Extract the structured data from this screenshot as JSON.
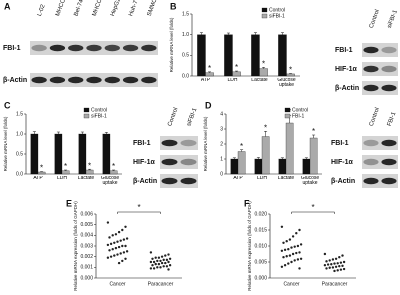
{
  "panel_labels": [
    "A",
    "B",
    "C",
    "D",
    "E",
    "F"
  ],
  "blots": [
    {
      "lanes": [
        "L-02",
        "MHCC97-H",
        "Bel-7402",
        "MHCC97-L",
        "HepG2",
        "Huh-7",
        "SMMC-7721"
      ],
      "rows": [
        "FBI-1",
        "β-Actin"
      ]
    },
    {
      "lanes": [
        "Control",
        "siFBI-1"
      ],
      "rows": [
        "FBI-1",
        "HIF-1α",
        "β-Actin"
      ]
    },
    {
      "lanes": [
        "Control",
        "siFBI-1"
      ],
      "rows": [
        "FBI-1",
        "HIF-1α",
        "β-Actin"
      ]
    },
    {
      "lanes": [
        "Control",
        "FBI-1"
      ],
      "rows": [
        "FBI-1",
        "HIF-1α",
        "β-Actin"
      ]
    }
  ],
  "chart_data": [
    {
      "type": "bar",
      "y_label": "Relative mRNA level (folds)",
      "categories": [
        "ATP",
        "LDH",
        "Lactate",
        "Glucose uptake"
      ],
      "series": [
        {
          "name": "Control",
          "color": "#111111",
          "values": [
            1.0,
            1.0,
            1.0,
            1.0
          ],
          "errors": [
            0.05,
            0.04,
            0.05,
            0.05
          ]
        },
        {
          "name": "siFBI-1",
          "color": "#aaaaaa",
          "values": [
            0.08,
            0.1,
            0.18,
            0.05
          ],
          "errors": [
            0.02,
            0.02,
            0.03,
            0.01
          ]
        }
      ],
      "annotations": [
        "*",
        "*",
        "*",
        "*"
      ],
      "ylim": [
        0,
        1.5
      ],
      "yticks": [
        {
          "value": 0,
          "label": "0.0"
        },
        {
          "value": 0.5,
          "label": "0.5"
        },
        {
          "value": 1,
          "label": "1.0"
        },
        {
          "value": 1.5,
          "label": "1.5"
        }
      ]
    },
    {
      "type": "bar",
      "y_label": "Relative mRNA level (folds)",
      "categories": [
        "ATP",
        "LDH",
        "Lactate",
        "Glucose uptake"
      ],
      "series": [
        {
          "name": "Control",
          "color": "#111111",
          "values": [
            1.0,
            1.0,
            1.0,
            1.0
          ],
          "errors": [
            0.06,
            0.05,
            0.05,
            0.04
          ]
        },
        {
          "name": "siFBI-1",
          "color": "#aaaaaa",
          "values": [
            0.05,
            0.08,
            0.1,
            0.08
          ],
          "errors": [
            0.01,
            0.02,
            0.02,
            0.02
          ]
        }
      ],
      "annotations": [
        "*",
        "*",
        "*",
        "*"
      ],
      "ylim": [
        0,
        1.5
      ],
      "yticks": [
        {
          "value": 0,
          "label": "0.0"
        },
        {
          "value": 0.5,
          "label": "0.5"
        },
        {
          "value": 1,
          "label": "1.0"
        },
        {
          "value": 1.5,
          "label": "1.5"
        }
      ]
    },
    {
      "type": "bar",
      "y_label": "Relative mRNA level (folds)",
      "categories": [
        "ATP",
        "LDH",
        "Lactate",
        "Glucose uptake"
      ],
      "series": [
        {
          "name": "Control",
          "color": "#111111",
          "values": [
            1.0,
            1.0,
            1.0,
            1.0
          ],
          "errors": [
            0.08,
            0.1,
            0.08,
            0.08
          ]
        },
        {
          "name": "FBI-1",
          "color": "#aaaaaa",
          "values": [
            1.5,
            2.5,
            3.4,
            2.4
          ],
          "errors": [
            0.12,
            0.35,
            0.5,
            0.2
          ]
        }
      ],
      "annotations": [
        "*",
        "*",
        "*",
        "*"
      ],
      "ylim": [
        0,
        4
      ],
      "yticks": [
        0,
        1,
        2,
        3,
        4
      ]
    },
    {
      "type": "scatter",
      "y_label": "Relative mRNA expression (folds of GAPDH)",
      "categories": [
        "Cancer",
        "Paracancer"
      ],
      "series": [
        {
          "color": "#222222",
          "values": [
            0.0052,
            0.0048,
            0.0045,
            0.0043,
            0.0041,
            0.004,
            0.0038,
            0.0037,
            0.0036,
            0.0035,
            0.0034,
            0.0033,
            0.0032,
            0.0031,
            0.003,
            0.003,
            0.0029,
            0.0028,
            0.0027,
            0.0026,
            0.0025,
            0.0024,
            0.0023,
            0.0022,
            0.0021,
            0.002,
            0.0019,
            0.0018,
            0.0016,
            0.0014
          ]
        },
        {
          "color": "#222222",
          "values": [
            0.0024,
            0.0022,
            0.0021,
            0.002,
            0.0019,
            0.0019,
            0.0018,
            0.0018,
            0.0017,
            0.0017,
            0.0016,
            0.0016,
            0.0015,
            0.0015,
            0.0015,
            0.0014,
            0.0014,
            0.0013,
            0.0013,
            0.0012,
            0.0012,
            0.0011,
            0.0011,
            0.001,
            0.001,
            0.0009,
            0.0009,
            0.0008
          ]
        }
      ],
      "annotation": "*",
      "ylim": [
        0,
        0.006
      ],
      "yticks": [
        {
          "value": 0,
          "label": "0.000"
        },
        {
          "value": 0.001,
          "label": "0.001"
        },
        {
          "value": 0.002,
          "label": "0.002"
        },
        {
          "value": 0.003,
          "label": "0.003"
        },
        {
          "value": 0.004,
          "label": "0.004"
        },
        {
          "value": 0.005,
          "label": "0.005"
        },
        {
          "value": 0.006,
          "label": "0.006"
        }
      ]
    },
    {
      "type": "scatter",
      "y_label": "Relative mRNA expression (folds of GAPDH)",
      "categories": [
        "Cancer",
        "Paracancer"
      ],
      "series": [
        {
          "color": "#222222",
          "values": [
            0.016,
            0.015,
            0.014,
            0.013,
            0.012,
            0.0115,
            0.011,
            0.0105,
            0.01,
            0.0098,
            0.0095,
            0.009,
            0.0088,
            0.0085,
            0.008,
            0.0078,
            0.0075,
            0.007,
            0.0068,
            0.0065,
            0.006,
            0.0058,
            0.0055,
            0.005,
            0.0045,
            0.004,
            0.0035,
            0.003
          ]
        },
        {
          "color": "#222222",
          "values": [
            0.0075,
            0.007,
            0.0065,
            0.006,
            0.0058,
            0.0055,
            0.0052,
            0.005,
            0.0048,
            0.0046,
            0.0045,
            0.0043,
            0.0042,
            0.004,
            0.0038,
            0.0037,
            0.0035,
            0.0033,
            0.0032,
            0.003,
            0.0028,
            0.0026,
            0.0024,
            0.0022
          ]
        }
      ],
      "annotation": "*",
      "ylim": [
        0,
        0.02
      ],
      "yticks": [
        {
          "value": 0,
          "label": "0.000"
        },
        {
          "value": 0.005,
          "label": "0.005"
        },
        {
          "value": 0.01,
          "label": "0.010"
        },
        {
          "value": 0.015,
          "label": "0.015"
        },
        {
          "value": 0.02,
          "label": "0.020"
        }
      ]
    }
  ]
}
